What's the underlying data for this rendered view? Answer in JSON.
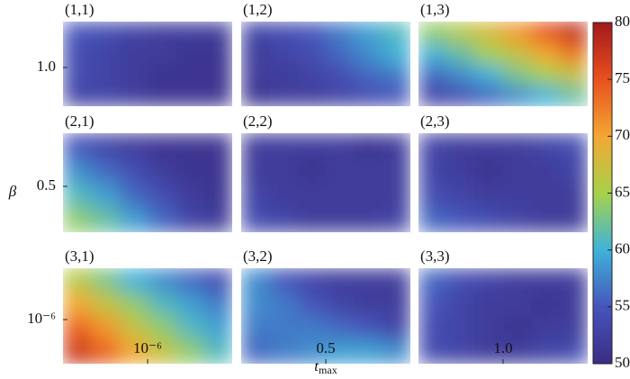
{
  "chart_data": {
    "type": "contour",
    "y_label": "β",
    "x_label_main": "t",
    "x_label_sub": "max",
    "categories": [
      "10⁻⁶",
      "0.5",
      "1.0"
    ],
    "row_categories": [
      "1.0",
      "0.5",
      "10⁻⁶"
    ],
    "zlim": [
      50,
      80
    ],
    "zticks": [
      50,
      55,
      60,
      65,
      70,
      75,
      80
    ],
    "colormap": [
      "#3b2c86",
      "#4655bb",
      "#3fb3d9",
      "#a6d24b",
      "#f3a733",
      "#e8501f",
      "#a3191b"
    ],
    "panels": [
      {
        "title": "(1,1)",
        "values": [
          [
            55,
            54,
            53,
            52,
            52,
            52
          ],
          [
            54,
            53,
            52,
            52,
            51,
            51
          ],
          [
            54,
            53,
            52,
            51,
            51,
            51
          ],
          [
            53,
            53,
            52,
            51,
            51,
            51
          ]
        ]
      },
      {
        "title": "(1,2)",
        "values": [
          [
            53,
            54,
            55,
            57,
            59,
            61
          ],
          [
            52,
            53,
            54,
            56,
            58,
            60
          ],
          [
            52,
            52,
            53,
            54,
            56,
            57
          ],
          [
            51,
            52,
            52,
            53,
            54,
            55
          ]
        ]
      },
      {
        "title": "(1,3)",
        "values": [
          [
            64,
            66,
            68,
            71,
            75,
            78
          ],
          [
            60,
            62,
            65,
            67,
            70,
            73
          ],
          [
            56,
            58,
            60,
            63,
            65,
            67
          ],
          [
            53,
            54,
            56,
            58,
            60,
            62
          ]
        ]
      },
      {
        "title": "(2,1)",
        "values": [
          [
            55,
            53,
            52,
            51,
            51,
            51
          ],
          [
            58,
            56,
            54,
            52,
            51,
            51
          ],
          [
            61,
            59,
            56,
            54,
            52,
            51
          ],
          [
            64,
            62,
            59,
            56,
            53,
            52
          ]
        ]
      },
      {
        "title": "(2,2)",
        "values": [
          [
            52,
            52,
            52,
            52,
            51,
            52
          ],
          [
            52,
            52,
            51,
            52,
            52,
            52
          ],
          [
            53,
            52,
            52,
            52,
            52,
            52
          ],
          [
            54,
            53,
            52,
            52,
            52,
            53
          ]
        ]
      },
      {
        "title": "(2,3)",
        "values": [
          [
            53,
            52,
            52,
            52,
            53,
            54
          ],
          [
            53,
            52,
            51,
            52,
            52,
            53
          ],
          [
            54,
            53,
            52,
            52,
            52,
            52
          ],
          [
            56,
            55,
            54,
            53,
            52,
            52
          ]
        ]
      },
      {
        "title": "(3,1)",
        "values": [
          [
            66,
            63,
            60,
            58,
            56,
            54
          ],
          [
            70,
            67,
            64,
            61,
            59,
            57
          ],
          [
            74,
            71,
            67,
            64,
            61,
            59
          ],
          [
            77,
            74,
            70,
            67,
            64,
            61
          ]
        ]
      },
      {
        "title": "(3,2)",
        "values": [
          [
            58,
            55,
            53,
            52,
            52,
            52
          ],
          [
            58,
            57,
            55,
            53,
            52,
            52
          ],
          [
            57,
            57,
            57,
            56,
            55,
            53
          ],
          [
            56,
            57,
            58,
            59,
            59,
            58
          ]
        ]
      },
      {
        "title": "(3,3)",
        "values": [
          [
            56,
            54,
            53,
            52,
            52,
            52
          ],
          [
            55,
            53,
            52,
            52,
            51,
            52
          ],
          [
            54,
            53,
            52,
            51,
            52,
            52
          ],
          [
            54,
            53,
            52,
            52,
            53,
            54
          ]
        ]
      }
    ]
  }
}
